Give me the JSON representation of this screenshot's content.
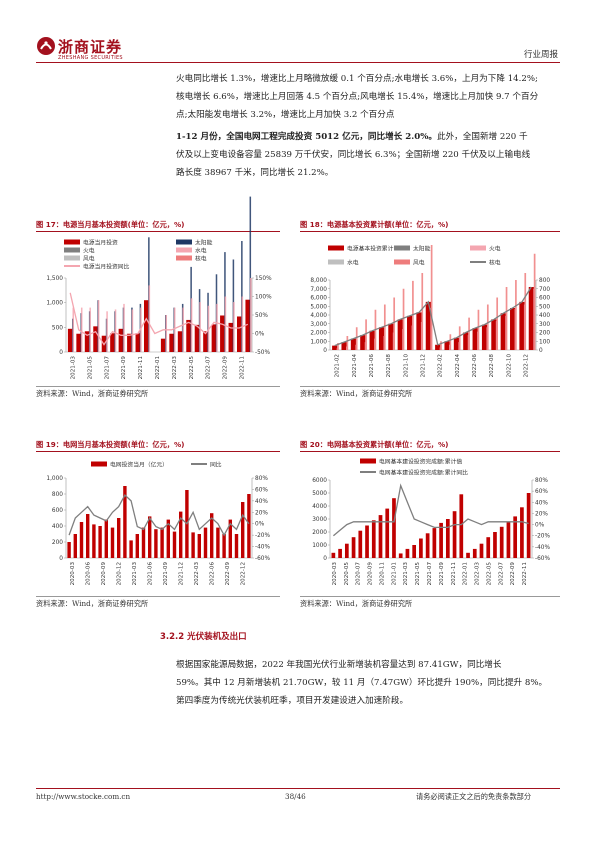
{
  "header": {
    "brand": "浙商证券",
    "brand_en": "ZHESHANG SECURITIES",
    "right": "行业周报"
  },
  "paragraphs": {
    "p1": "火电同比增长 1.3%，增速比上月略微放缓 0.1 个百分点;水电增长 3.6%，上月为下降 14.2%;\n核电增长 6.6%，增速比上月回落 4.5 个百分点;风电增长 15.4%，增速比上月加快 9.7 个百分\n点;太阳能发电增长 3.2%，增速比上月加快 3.2 个百分点",
    "p2_bold": "1-12 月份，全国电网工程完成投资 5012 亿元，同比增长 2.0%。",
    "p2_rest": "此外，全国新增 220 千\n伏及以上变电设备容量 25839 万千伏安，同比增长 6.3%；全国新增 220 千伏及以上输电线\n路长度 38967 千米，同比增长 21.2%。",
    "p3": "根据国家能源局数据，2022 年我国光伏行业新增装机容量达到  87.41GW，同比增长\n59%。其中 12 月新增装机 21.70GW，较 11 月（7.47GW）环比提升 190%，同比提升 8%。\n第四季度为传统光伏装机旺季，项目开发建设进入加速阶段。"
  },
  "section_title": "3.2.2 光伏装机及出口",
  "source": "资料来源：Wind，浙商证券研究所",
  "footer": {
    "url": "http://www.stocke.com.cn",
    "page": "38/46",
    "disclaimer": "请务必阅读正文之后的免责条款部分"
  },
  "colors": {
    "brand": "#a3111e",
    "darkred": "#c00000",
    "navy": "#1f3864",
    "gray": "#7f7f7f",
    "pink": "#f4a6b0",
    "lightred": "#ee7c7c",
    "lightgray": "#bfbfbf"
  },
  "chart_data": [
    {
      "title": "图 17：电源当月基本投资额(单位：亿元，%)",
      "type": "bar",
      "legend": [
        "电源当月投资",
        "太阳能",
        "火电",
        "水电",
        "风电",
        "核电",
        "电源当月投资同比"
      ],
      "categories": [
        "2021-03",
        "2021-04",
        "2021-05",
        "2021-06",
        "2021-07",
        "2021-08",
        "2021-09",
        "2021-10",
        "2021-11",
        "2021-12",
        "2022-01",
        "2022-02",
        "2022-03",
        "2022-04",
        "2022-05",
        "2022-06",
        "2022-07",
        "2022-08",
        "2022-09",
        "2022-10",
        "2022-11",
        "2022-12"
      ],
      "xticks": [
        "2021-03",
        "2021-05",
        "2021-07",
        "2021-09",
        "2021-11",
        "2022-01",
        "2022-03",
        "2022-05",
        "2022-07",
        "2022-09",
        "2022-11"
      ],
      "series": [
        {
          "name": "电源当月投资",
          "values": [
            470,
            370,
            420,
            520,
            330,
            380,
            470,
            370,
            380,
            1050,
            0,
            270,
            370,
            420,
            650,
            550,
            420,
            560,
            740,
            590,
            720,
            1060
          ]
        },
        {
          "name": "太阳能",
          "values": [
            40,
            55,
            60,
            90,
            40,
            60,
            70,
            70,
            80,
            260,
            0,
            50,
            70,
            80,
            180,
            120,
            110,
            160,
            220,
            200,
            250,
            370
          ]
        },
        {
          "name": "火电",
          "values": [
            60,
            45,
            45,
            60,
            40,
            40,
            55,
            45,
            45,
            160,
            0,
            35,
            45,
            45,
            70,
            60,
            50,
            55,
            75,
            60,
            75,
            160
          ]
        },
        {
          "name": "水电",
          "values": [
            70,
            70,
            70,
            90,
            60,
            65,
            80,
            65,
            70,
            130,
            0,
            50,
            70,
            70,
            95,
            85,
            75,
            80,
            100,
            85,
            100,
            150
          ]
        },
        {
          "name": "风电",
          "values": [
            140,
            110,
            130,
            180,
            110,
            130,
            150,
            130,
            120,
            480,
            0,
            80,
            120,
            130,
            200,
            180,
            130,
            170,
            230,
            170,
            200,
            370
          ]
        },
        {
          "name": "核电",
          "values": [
            30,
            30,
            30,
            40,
            25,
            30,
            35,
            30,
            30,
            60,
            0,
            20,
            30,
            35,
            45,
            45,
            40,
            40,
            55,
            40,
            50,
            70
          ]
        },
        {
          "name": "电源当月投资同比",
          "values": [
            110,
            10,
            -5,
            5,
            -30,
            5,
            -5,
            -5,
            0,
            40,
            0,
            10,
            10,
            20,
            30,
            20,
            0,
            30,
            25,
            15,
            15,
            25
          ]
        }
      ],
      "y_left": {
        "range": [
          0,
          1500
        ],
        "ticks": [
          "0",
          "500",
          "1,000",
          "1,500"
        ]
      },
      "y_right": {
        "range": [
          -50,
          150
        ],
        "ticks": [
          "-50%",
          "0%",
          "50%",
          "100%",
          "150%"
        ]
      }
    },
    {
      "title": "图 18：电源基本投资累计额(单位：亿元，%)",
      "type": "bar",
      "legend": [
        "电源基本投资累计",
        "太阳能",
        "火电",
        "水电",
        "风电",
        "核电"
      ],
      "categories": [
        "2021-02",
        "2021-03",
        "2021-04",
        "2021-05",
        "2021-06",
        "2021-07",
        "2021-08",
        "2021-09",
        "2021-10",
        "2021-11",
        "2021-12",
        "2022-02",
        "2022-03",
        "2022-04",
        "2022-05",
        "2022-06",
        "2022-07",
        "2022-08",
        "2022-09",
        "2022-10",
        "2022-11",
        "2022-12"
      ],
      "xticks": [
        "2021-02",
        "2021-04",
        "2021-06",
        "2021-08",
        "2021-10",
        "2021-12",
        "2022-02",
        "2022-04",
        "2022-06",
        "2022-08",
        "2022-10",
        "2022-12"
      ],
      "series": [
        {
          "name": "电源基本投资累计",
          "values": [
            500,
            900,
            1300,
            1700,
            2200,
            2600,
            3000,
            3500,
            3900,
            4300,
            5500,
            600,
            1000,
            1400,
            2000,
            2500,
            2900,
            3500,
            4200,
            4800,
            5500,
            7200
          ]
        },
        {
          "name": "太阳能",
          "values": [
            20,
            40,
            60,
            90,
            130,
            160,
            200,
            240,
            280,
            320,
            480,
            30,
            60,
            90,
            170,
            210,
            260,
            330,
            390,
            470,
            520,
            700
          ]
        },
        {
          "name": "火电",
          "values": [
            30,
            50,
            70,
            90,
            120,
            140,
            160,
            190,
            210,
            240,
            330,
            30,
            50,
            70,
            90,
            110,
            130,
            150,
            180,
            200,
            230,
            320
          ]
        },
        {
          "name": "水电",
          "values": [
            50,
            100,
            150,
            200,
            260,
            300,
            350,
            410,
            460,
            510,
            650,
            60,
            100,
            150,
            200,
            250,
            300,
            350,
            410,
            460,
            520,
            720
          ]
        },
        {
          "name": "风电",
          "values": [
            80,
            160,
            260,
            350,
            460,
            520,
            600,
            700,
            790,
            880,
            1200,
            100,
            180,
            270,
            370,
            460,
            520,
            600,
            720,
            800,
            880,
            1100
          ]
        },
        {
          "name": "核电",
          "values": [
            10,
            20,
            30,
            40,
            50,
            60,
            70,
            80,
            90,
            100,
            130,
            10,
            20,
            30,
            40,
            60,
            70,
            80,
            100,
            110,
            130,
            160
          ]
        }
      ],
      "y_left": {
        "range": [
          0,
          8000
        ],
        "ticks": [
          "0",
          "1,000",
          "2,000",
          "3,000",
          "4,000",
          "5,000",
          "6,000",
          "7,000",
          "8,000"
        ]
      },
      "y_right": {
        "range": [
          0,
          800
        ],
        "ticks": [
          "0",
          "100",
          "200",
          "300",
          "400",
          "500",
          "600",
          "700",
          "800"
        ]
      }
    },
    {
      "title": "图 19：电网当月基本投资额(单位：亿元，%)",
      "type": "bar",
      "legend": [
        "电网投资当月（亿元）",
        "同比"
      ],
      "categories": [
        "2020-03",
        "2020-04",
        "2020-05",
        "2020-06",
        "2020-07",
        "2020-08",
        "2020-09",
        "2020-10",
        "2020-11",
        "2020-12",
        "2021-03",
        "2021-04",
        "2021-05",
        "2021-06",
        "2021-07",
        "2021-08",
        "2021-09",
        "2021-10",
        "2021-11",
        "2021-12",
        "2022-03",
        "2022-04",
        "2022-05",
        "2022-06",
        "2022-07",
        "2022-08",
        "2022-09",
        "2022-10",
        "2022-11",
        "2022-12"
      ],
      "xticks": [
        "2020-03",
        "2020-06",
        "2020-09",
        "2020-12",
        "2021-03",
        "2021-06",
        "2021-09",
        "2021-12",
        "2022-03",
        "2022-06",
        "2022-09",
        "2022-12"
      ],
      "series": [
        {
          "name": "电网投资当月（亿元）",
          "values": [
            200,
            300,
            450,
            550,
            420,
            400,
            480,
            380,
            500,
            900,
            220,
            300,
            380,
            520,
            360,
            380,
            480,
            330,
            580,
            850,
            320,
            300,
            380,
            560,
            380,
            300,
            480,
            300,
            700,
            800
          ]
        },
        {
          "name": "同比",
          "values": [
            -20,
            10,
            20,
            30,
            15,
            10,
            5,
            20,
            30,
            50,
            40,
            -5,
            -10,
            10,
            -5,
            -10,
            0,
            -10,
            10,
            0,
            20,
            -10,
            0,
            10,
            0,
            -20,
            0,
            -10,
            15,
            0
          ]
        }
      ],
      "y_left": {
        "range": [
          0,
          1000
        ],
        "ticks": [
          "0",
          "200",
          "400",
          "600",
          "800",
          "1,000"
        ]
      },
      "y_right": {
        "range": [
          -60,
          80
        ],
        "ticks": [
          "-60%",
          "-40%",
          "-20%",
          "0%",
          "20%",
          "40%",
          "60%",
          "80%"
        ]
      }
    },
    {
      "title": "图 20：电网基本投资累计额(单位：亿元，%)",
      "type": "bar",
      "legend": [
        "电网基本建设投资完成额:累计值",
        "电网基本建设投资完成额:累计同比"
      ],
      "categories": [
        "2020-03",
        "2020-04",
        "2020-05",
        "2020-06",
        "2020-07",
        "2020-08",
        "2020-09",
        "2020-10",
        "2020-11",
        "2020-12",
        "2021-03",
        "2021-04",
        "2021-05",
        "2021-06",
        "2021-07",
        "2021-08",
        "2021-09",
        "2021-10",
        "2021-11",
        "2021-12",
        "2022-03",
        "2022-04",
        "2022-05",
        "2022-06",
        "2022-07",
        "2022-08",
        "2022-09",
        "2022-10",
        "2022-11",
        "2022-12"
      ],
      "xticks": [
        "2020-03",
        "2020-05",
        "2020-07",
        "2020-09",
        "2020-11",
        "2021-01",
        "2021-03",
        "2021-05",
        "2021-07",
        "2021-09",
        "2021-11",
        "2022-01",
        "2022-03",
        "2022-05",
        "2022-07",
        "2022-09",
        "2022-11"
      ],
      "series": [
        {
          "name": "电网基本建设投资完成额:累计值",
          "values": [
            400,
            700,
            1100,
            1600,
            2100,
            2500,
            2900,
            3300,
            3800,
            4600,
            350,
            700,
            1000,
            1500,
            1900,
            2300,
            2700,
            3000,
            3600,
            4900,
            400,
            700,
            1100,
            1600,
            2000,
            2400,
            2800,
            3200,
            3900,
            5000
          ]
        },
        {
          "name": "电网基本建设投资完成额:累计同比",
          "values": [
            -20,
            -10,
            0,
            5,
            5,
            5,
            5,
            5,
            5,
            5,
            70,
            40,
            10,
            5,
            0,
            -5,
            -5,
            -5,
            0,
            0,
            10,
            5,
            0,
            5,
            5,
            5,
            5,
            5,
            5,
            2
          ]
        }
      ],
      "y_left": {
        "range": [
          0,
          6000
        ],
        "ticks": [
          "0",
          "1000",
          "2000",
          "3000",
          "4000",
          "5000",
          "6000"
        ]
      },
      "y_right": {
        "range": [
          -60,
          80
        ],
        "ticks": [
          "-60%",
          "-40%",
          "-20%",
          "0%",
          "20%",
          "40%",
          "60%",
          "80%"
        ]
      }
    }
  ]
}
